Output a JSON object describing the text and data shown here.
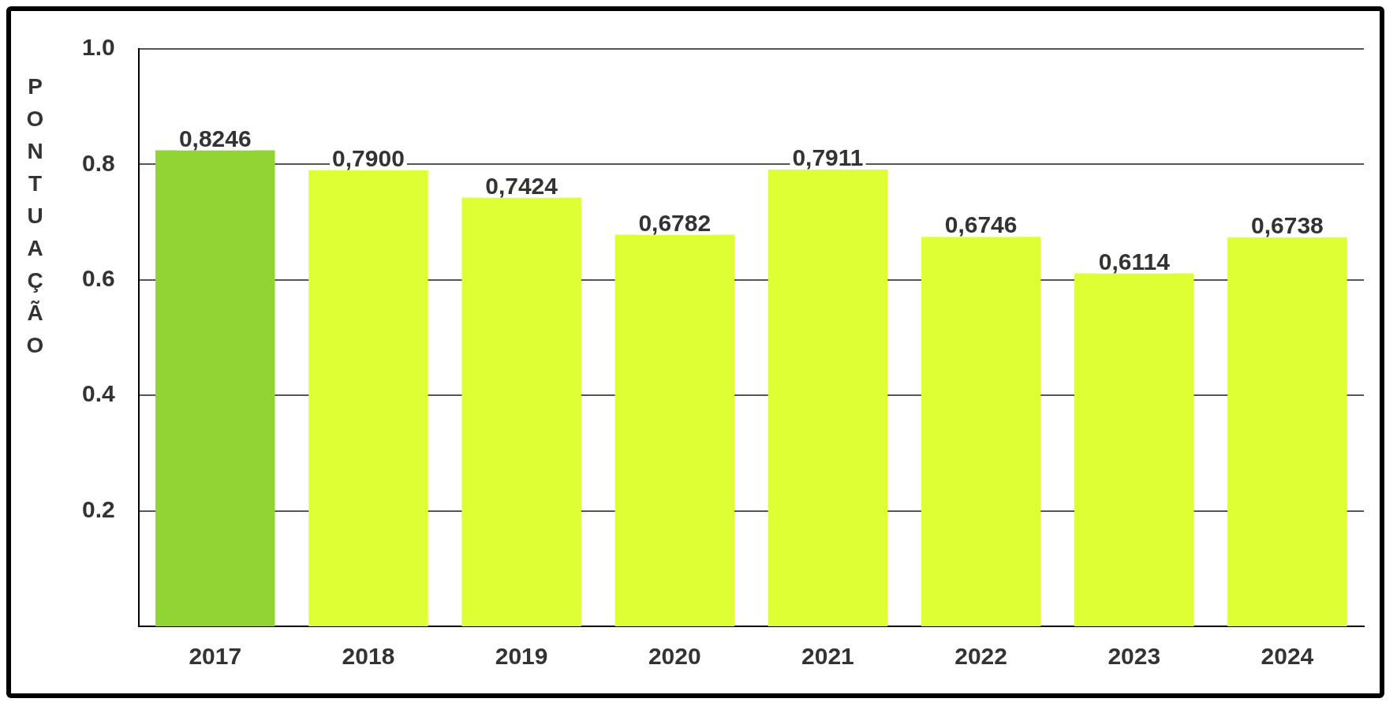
{
  "chart_data": {
    "type": "bar",
    "ylabel": "PONTUAÇÃO",
    "categories": [
      "2017",
      "2018",
      "2019",
      "2020",
      "2021",
      "2022",
      "2023",
      "2024"
    ],
    "values": [
      0.8246,
      0.79,
      0.7424,
      0.6782,
      0.7911,
      0.6746,
      0.6114,
      0.6738
    ],
    "colors": [
      "#92d433",
      "#ddff33",
      "#ddff33",
      "#ddff33",
      "#ddff33",
      "#ddff33",
      "#ddff33",
      "#ddff33"
    ],
    "value_labels": [
      "0,8246",
      "0,7900",
      "0,7424",
      "0,6782",
      "0,7911",
      "0,6746",
      "0,6114",
      "0,6738"
    ],
    "ylim": [
      0,
      1
    ],
    "yticks": [
      {
        "value": 0.2,
        "label": "0.2"
      },
      {
        "value": 0.4,
        "label": "0.4"
      },
      {
        "value": 0.6,
        "label": "0.6"
      },
      {
        "value": 0.8,
        "label": "0.8"
      },
      {
        "value": 1,
        "label": "1.0"
      }
    ],
    "grid": "y",
    "legend": false
  }
}
